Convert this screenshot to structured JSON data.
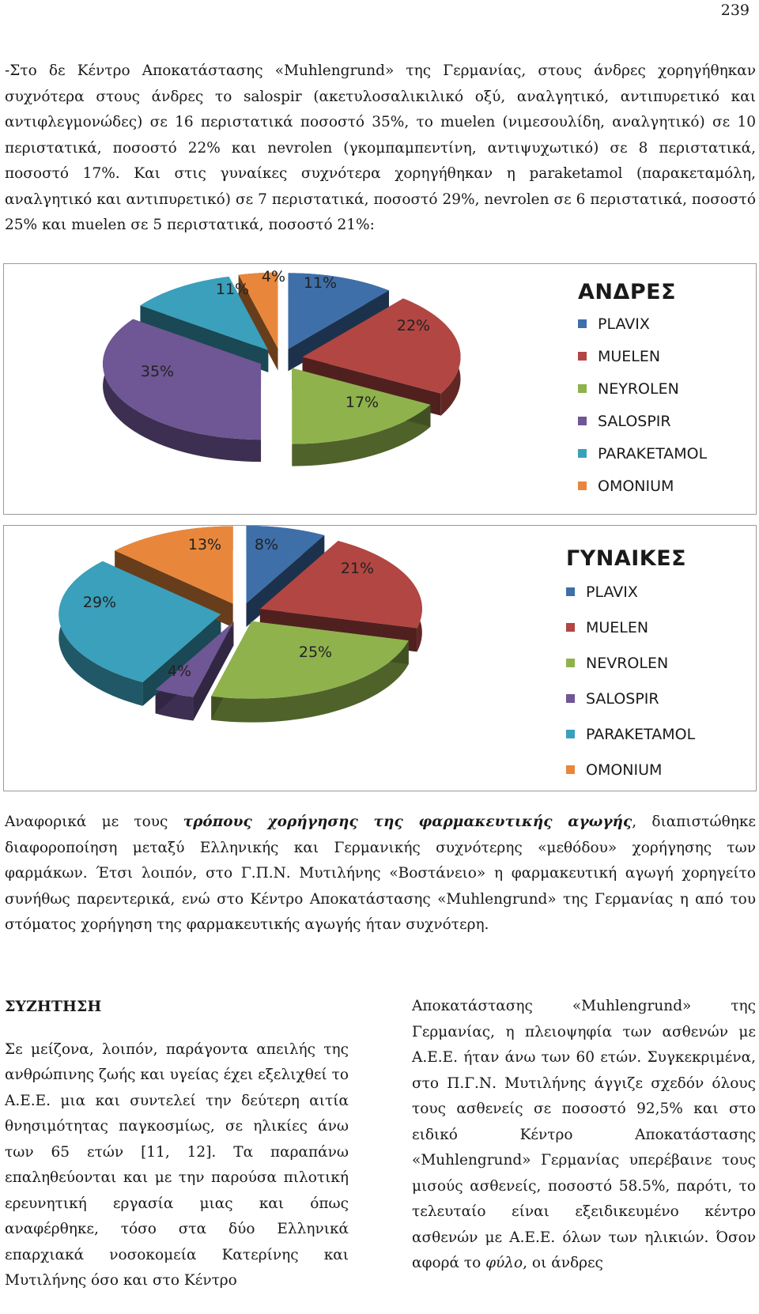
{
  "page_number": "239",
  "paragraph1": "-Στο δε Κέντρο Αποκατάστασης «Muhlengrund» της Γερμανίας, στους άνδρες χορηγήθηκαν συχνότερα στους άνδρες το salospir (ακετυλοσαλικιλικό οξύ, αναλγητικό, αντιπυρετικό και αντιφλεγμονώδες) σε 16 περιστατικά ποσοστό 35%, το muelen (νιμεσουλίδη, αναλγητικό) σε 10 περιστατικά, ποσοστό 22% και nevrolen (γκομπαμπεντίνη, αντιψυχωτικό) σε 8 περιστατικά, ποσοστό 17%. Και στις γυναίκες συχνότερα χορηγήθηκαν η parakеtamol (παρακεταμόλη, αναλγητικό και αντιπυρετικό) σε 7 περιστατικά, ποσοστό 29%, nevrolen σε 6 περιστατικά, ποσοστό 25% και muelen σε 5 περιστατικά, ποσοστό 21%:",
  "chart_data": [
    {
      "type": "pie",
      "title": "ΑΝΔΡΕΣ",
      "categories": [
        "PLAVIX",
        "MUELEN",
        "ΝΕΥROLEN",
        "SALOSPIR",
        "PARAKETAMOL",
        "OMONIUM"
      ],
      "values": [
        11,
        22,
        17,
        35,
        11,
        4
      ],
      "labels": [
        "11%",
        "22%",
        "17%",
        "35%",
        "11%",
        "4%"
      ],
      "exploded": true,
      "three_d": true,
      "legend_position": "right"
    },
    {
      "type": "pie",
      "title": "ΓΥΝΑΙΚΕΣ",
      "categories": [
        "PLAVIX",
        "MUELEN",
        "NEVROLEN",
        "SALOSPIR",
        "PARAKETAMOL",
        "OMONIUM"
      ],
      "values": [
        8,
        21,
        25,
        4,
        29,
        13
      ],
      "labels": [
        "8%",
        "21%",
        "25%",
        "4%",
        "29%",
        "13%"
      ],
      "exploded": true,
      "three_d": true,
      "legend_position": "right"
    }
  ],
  "colors": {
    "PLAVIX": "#4f81bd",
    "MUELEN": "#c0504d",
    "NEVROLEN": "#9bbb59",
    "SALOSPIR": "#8064a2",
    "PARAKETAMOL": "#4bacc6",
    "OMONIUM": "#f79646"
  },
  "paragraph2": {
    "part1": "Αναφορικά με τους ",
    "emphasis": "τρόπους χορήγησης της φαρμακευτικής αγωγής",
    "part2": ", διαπιστώθηκε διαφοροποίηση μεταξύ Ελληνικής και Γερμανικής συχνότερης «μεθόδου» χορήγησης των φαρμάκων. Έτσι λοιπόν, στο Γ.Π.Ν. Μυτιλήνης «Βοστάνειο» η φαρμακευτική αγωγή χορηγείτο συνήθως παρεντερικά, ενώ στο Κέντρο Αποκατάστασης «Muhlengrund» της Γερμανίας η από του στόματος χορήγηση της φαρμακευτικής αγωγής ήταν συχνότερη."
  },
  "discussion": {
    "heading": "ΣΥΖΗΤΗΣΗ",
    "left_text": "Σε μείζονα, λοιπόν, παράγοντα απειλής της ανθρώπινης ζωής και υγείας έχει εξελιχθεί το Α.Ε.Ε. μια και συντελεί την δεύτερη αιτία θνησιμότητας παγκοσμίως, σε ηλικίες άνω των 65 ετών [11, 12]. Τα παραπάνω επαληθεύονται και με την παρούσα πιλοτική ερευνητική εργασία μιας και όπως αναφέρθηκε, τόσο στα δύο Ελληνικά επαρχιακά νοσοκομεία Κατερίνης και Μυτιλήνης όσο και στο Κέντρο",
    "right_text_1": "Αποκατάστασης «Muhlengrund» της Γερμανίας, η πλειοψηφία των ασθενών με Α.Ε.Ε. ήταν άνω των 60 ετών. Συγκεκριμένα, στο Π.Γ.Ν. Μυτιλήνης άγγιζε σχεδόν όλους τους ασθενείς σε ποσοστό 92,5% και στο ειδικό Κέντρο Αποκατάστασης «Muhlengrund» Γερμανίας υπερέβαινε τους μισούς ασθενείς, ποσοστό 58.5%, παρότι, το τελευταίο είναι εξειδικευμένο κέντρο ασθενών με Α.Ε.Ε. όλων των ηλικιών. Όσον αφορά το ",
    "right_emphasis": "φύλο",
    "right_text_2": ", οι άνδρες"
  }
}
